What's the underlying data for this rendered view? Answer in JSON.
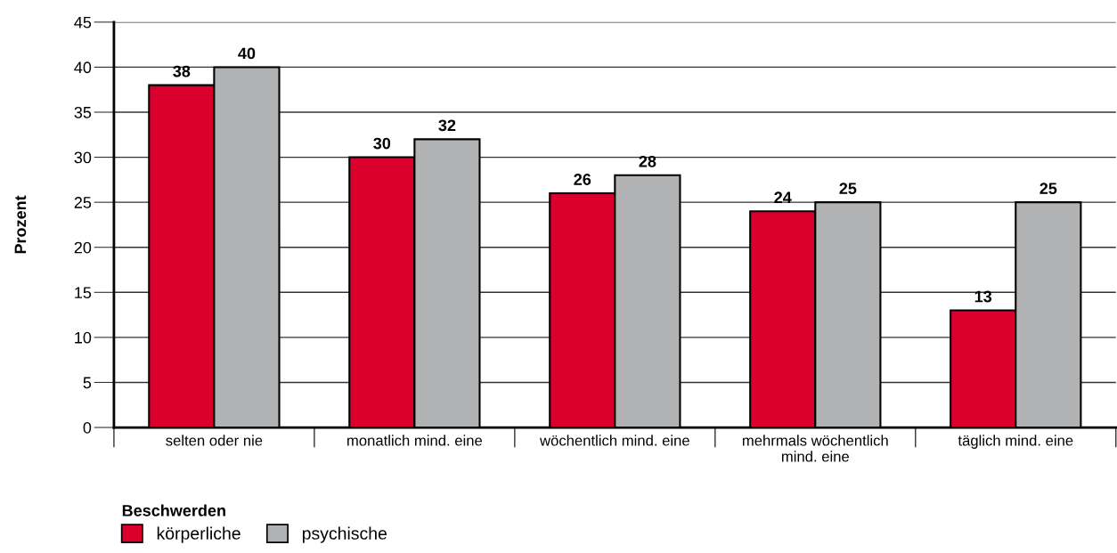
{
  "chart_data": {
    "type": "bar",
    "ylabel": "Prozent",
    "legend_title": "Beschwerden",
    "categories": [
      "selten oder nie",
      "monatlich mind. eine",
      "wöchentlich mind. eine",
      "mehrmals wöchentlich\nmind. eine",
      "täglich mind. eine"
    ],
    "series": [
      {
        "name": "körperliche",
        "color": "#d9002e",
        "values": [
          38,
          30,
          26,
          24,
          13
        ]
      },
      {
        "name": "psychische",
        "color": "#b1b2b4",
        "values": [
          40,
          32,
          28,
          25,
          25
        ]
      }
    ],
    "ylim": [
      0,
      45
    ],
    "yticks": [
      0,
      5,
      10,
      15,
      20,
      25,
      30,
      35,
      40,
      45
    ],
    "grid": "y",
    "legend": "bottom left",
    "data_labels": true
  }
}
